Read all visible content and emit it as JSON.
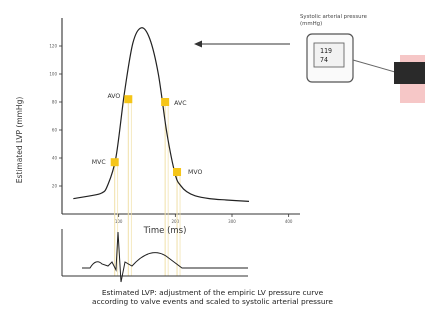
{
  "chart_data": {
    "type": "line",
    "ylabel": "Estimated LVP (mmHg)",
    "xlabel": "Time (ms)",
    "ylim": [
      0,
      140
    ],
    "xlim": [
      0,
      420
    ],
    "yticks": [
      20,
      40,
      60,
      80,
      100,
      120
    ],
    "xticks": [
      100,
      200,
      300,
      400
    ],
    "xtick_labels": [
      "100",
      "200",
      "300",
      "400"
    ],
    "ytick_labels": [
      "20",
      "40",
      "60",
      "80",
      "100",
      "120"
    ],
    "series": [
      {
        "x": [
          20,
          50,
          70,
          80,
          95,
          110,
          125,
          140,
          155,
          170,
          185,
          200,
          210,
          220,
          235,
          260,
          290,
          330
        ],
        "y": [
          11,
          13,
          15,
          20,
          40,
          86,
          122,
          133,
          125,
          100,
          58,
          28,
          20,
          16,
          13,
          11,
          10,
          9
        ]
      }
    ],
    "events": [
      {
        "label": "AVO",
        "x": 117,
        "y": 82
      },
      {
        "label": "AVC",
        "x": 182,
        "y": 80
      },
      {
        "label": "MVC",
        "x": 93,
        "y": 37
      },
      {
        "label": "MVO",
        "x": 203,
        "y": 30
      }
    ],
    "marker_color": "#f5c518",
    "guide_color": "#f0e0a8",
    "ecg_color": "#222222"
  },
  "device": {
    "caption_line1": "Systolic arterial pressure",
    "caption_line2": "(mmHg)",
    "systolic": "119",
    "diastolic": "74",
    "cuff_color": "#2a2a2a",
    "arm_color": "#f6c7c7"
  },
  "caption": {
    "line1": "Estimated LVP: adjustment of the empiric LV pressure curve",
    "line2": "according to valve events and scaled to systolic arterial pressure"
  }
}
